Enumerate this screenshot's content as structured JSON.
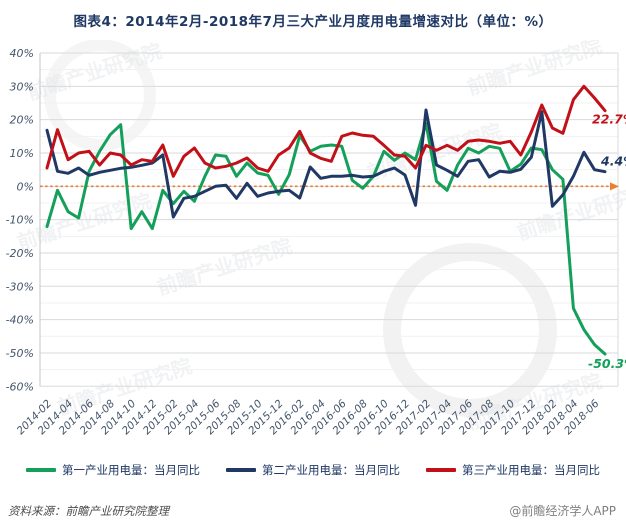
{
  "title": "图表4：2014年2月-2018年7月三大产业月度用电量增速对比（单位：%）",
  "source_note": "资料来源：前瞻产业研究院整理",
  "brand_credit": "@前瞻经济学人APP",
  "watermark_text": "前瞻产业研究院",
  "colors": {
    "title": "#1F3864",
    "axis_label": "#44546A",
    "grid_major": "#DADADA",
    "grid_minor": "#F1F1F1",
    "zero_line": "#ED7D31",
    "primary": "#14A05A",
    "secondary": "#1F3864",
    "tertiary": "#C21018"
  },
  "chart_data": {
    "type": "line",
    "title": "图表4：2014年2月-2018年7月三大产业月度用电量增速对比（单位：%）",
    "xlabel": "",
    "ylabel": "%",
    "ylim": [
      -60,
      40
    ],
    "ytick_step": 10,
    "grid": "horizontal major every 10, minor every 5, no vertical gridlines",
    "legend_position": "bottom",
    "zero_line": {
      "style": "dashed",
      "color": "#ED7D31",
      "arrow_right": true
    },
    "y_tick_labels": [
      "40%",
      "30%",
      "20%",
      "10%",
      "0%",
      "-10%",
      "-20%",
      "-30%",
      "-40%",
      "-50%",
      "-60%"
    ],
    "x_tick_labels": [
      "2014-02",
      "2014-04",
      "2014-06",
      "2014-08",
      "2014-10",
      "2014-12",
      "2015-02",
      "2015-04",
      "2015-06",
      "2015-08",
      "2015-10",
      "2015-12",
      "2016-02",
      "2016-04",
      "2016-06",
      "2016-08",
      "2016-10",
      "2016-12",
      "2017-02",
      "2017-04",
      "2017-06",
      "2017-08",
      "2017-10",
      "2017-12",
      "2018-02",
      "2018-04",
      "2018-06"
    ],
    "x_months": [
      "2014-02",
      "2014-03",
      "2014-04",
      "2014-05",
      "2014-06",
      "2014-07",
      "2014-08",
      "2014-09",
      "2014-10",
      "2014-11",
      "2014-12",
      "2015-01",
      "2015-02",
      "2015-03",
      "2015-04",
      "2015-05",
      "2015-06",
      "2015-07",
      "2015-08",
      "2015-09",
      "2015-10",
      "2015-11",
      "2015-12",
      "2016-01",
      "2016-02",
      "2016-03",
      "2016-04",
      "2016-05",
      "2016-06",
      "2016-07",
      "2016-08",
      "2016-09",
      "2016-10",
      "2016-11",
      "2016-12",
      "2017-01",
      "2017-02",
      "2017-03",
      "2017-04",
      "2017-05",
      "2017-06",
      "2017-07",
      "2017-08",
      "2017-09",
      "2017-10",
      "2017-11",
      "2017-12",
      "2018-01",
      "2018-02",
      "2018-03",
      "2018-04",
      "2018-05",
      "2018-06",
      "2018-07"
    ],
    "series": [
      {
        "name": "第一产业用电量：当月同比",
        "color": "#14A05A",
        "end_label": "-50.3%",
        "values": [
          -12.1,
          -1.2,
          -7.6,
          -9.5,
          4.5,
          10.5,
          15.5,
          18.5,
          -12.7,
          -7.6,
          -12.7,
          -1.2,
          -5.2,
          -1.5,
          -4.5,
          3.0,
          9.4,
          9.0,
          3.0,
          7.0,
          4.0,
          3.3,
          -2.4,
          3.5,
          15.2,
          10.5,
          12.0,
          12.4,
          12.0,
          1.8,
          -0.6,
          3.0,
          10.5,
          7.8,
          10.0,
          8.0,
          18.9,
          1.5,
          -1.2,
          6.4,
          11.4,
          10.0,
          12.0,
          11.4,
          4.5,
          6.6,
          11.5,
          11.0,
          5.0,
          2.1,
          -36.6,
          -43.0,
          -47.5,
          -50.3
        ]
      },
      {
        "name": "第二产业用电量：当月同比",
        "color": "#1F3864",
        "end_label": "4.4%",
        "values": [
          16.8,
          4.5,
          3.9,
          5.5,
          3.3,
          4.2,
          4.8,
          5.4,
          5.7,
          6.3,
          7.0,
          9.4,
          -9.2,
          -3.6,
          -3.0,
          -1.5,
          0.0,
          0.3,
          -3.6,
          0.9,
          -3.0,
          -2.0,
          -1.5,
          -1.2,
          -3.5,
          5.8,
          2.4,
          3.0,
          3.0,
          3.3,
          2.8,
          3.0,
          4.5,
          5.5,
          3.4,
          -5.7,
          22.9,
          6.4,
          4.8,
          3.0,
          7.5,
          8.0,
          2.8,
          4.5,
          4.2,
          5.1,
          8.7,
          22.4,
          -6.0,
          -2.5,
          3.0,
          10.2,
          5.0,
          4.4
        ]
      },
      {
        "name": "第三产业用电量：当月同比",
        "color": "#C21018",
        "end_label": "22.7%",
        "values": [
          5.5,
          17.0,
          8.0,
          10.0,
          10.5,
          6.4,
          10.0,
          9.4,
          6.4,
          8.0,
          7.5,
          12.4,
          3.0,
          9.0,
          11.5,
          7.0,
          5.5,
          6.0,
          7.0,
          8.5,
          5.5,
          4.5,
          9.4,
          11.5,
          16.5,
          10.0,
          8.4,
          7.5,
          15.0,
          16.0,
          15.3,
          15.0,
          12.3,
          9.4,
          9.0,
          5.5,
          12.3,
          10.8,
          12.3,
          10.8,
          13.5,
          13.9,
          13.5,
          12.9,
          13.5,
          9.4,
          16.3,
          24.4,
          17.5,
          15.9,
          26.0,
          30.0,
          26.5,
          22.7
        ]
      }
    ]
  }
}
